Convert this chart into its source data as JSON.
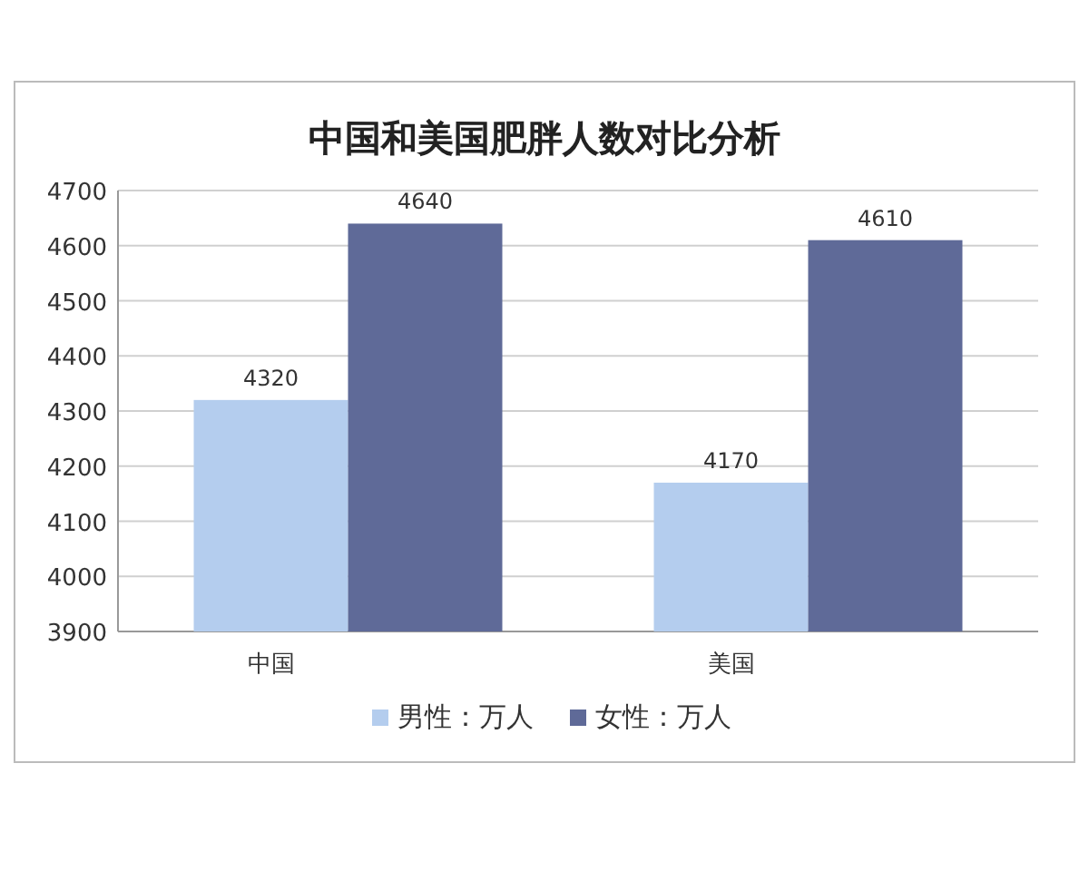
{
  "chart_data": {
    "type": "bar",
    "title": "中国和美国肥胖人数对比分析",
    "categories": [
      "中国",
      "美国"
    ],
    "series": [
      {
        "name": "男性：万人",
        "color": "#b4cdee",
        "values": [
          4320,
          4170
        ]
      },
      {
        "name": "女性：万人",
        "color": "#5f6a98",
        "values": [
          4640,
          4610
        ]
      }
    ],
    "ylim": [
      3900,
      4700
    ],
    "yticks": [
      3900,
      4000,
      4100,
      4200,
      4300,
      4400,
      4500,
      4600,
      4700
    ],
    "grid": "y",
    "legend": "bottom",
    "data_labels": true
  }
}
